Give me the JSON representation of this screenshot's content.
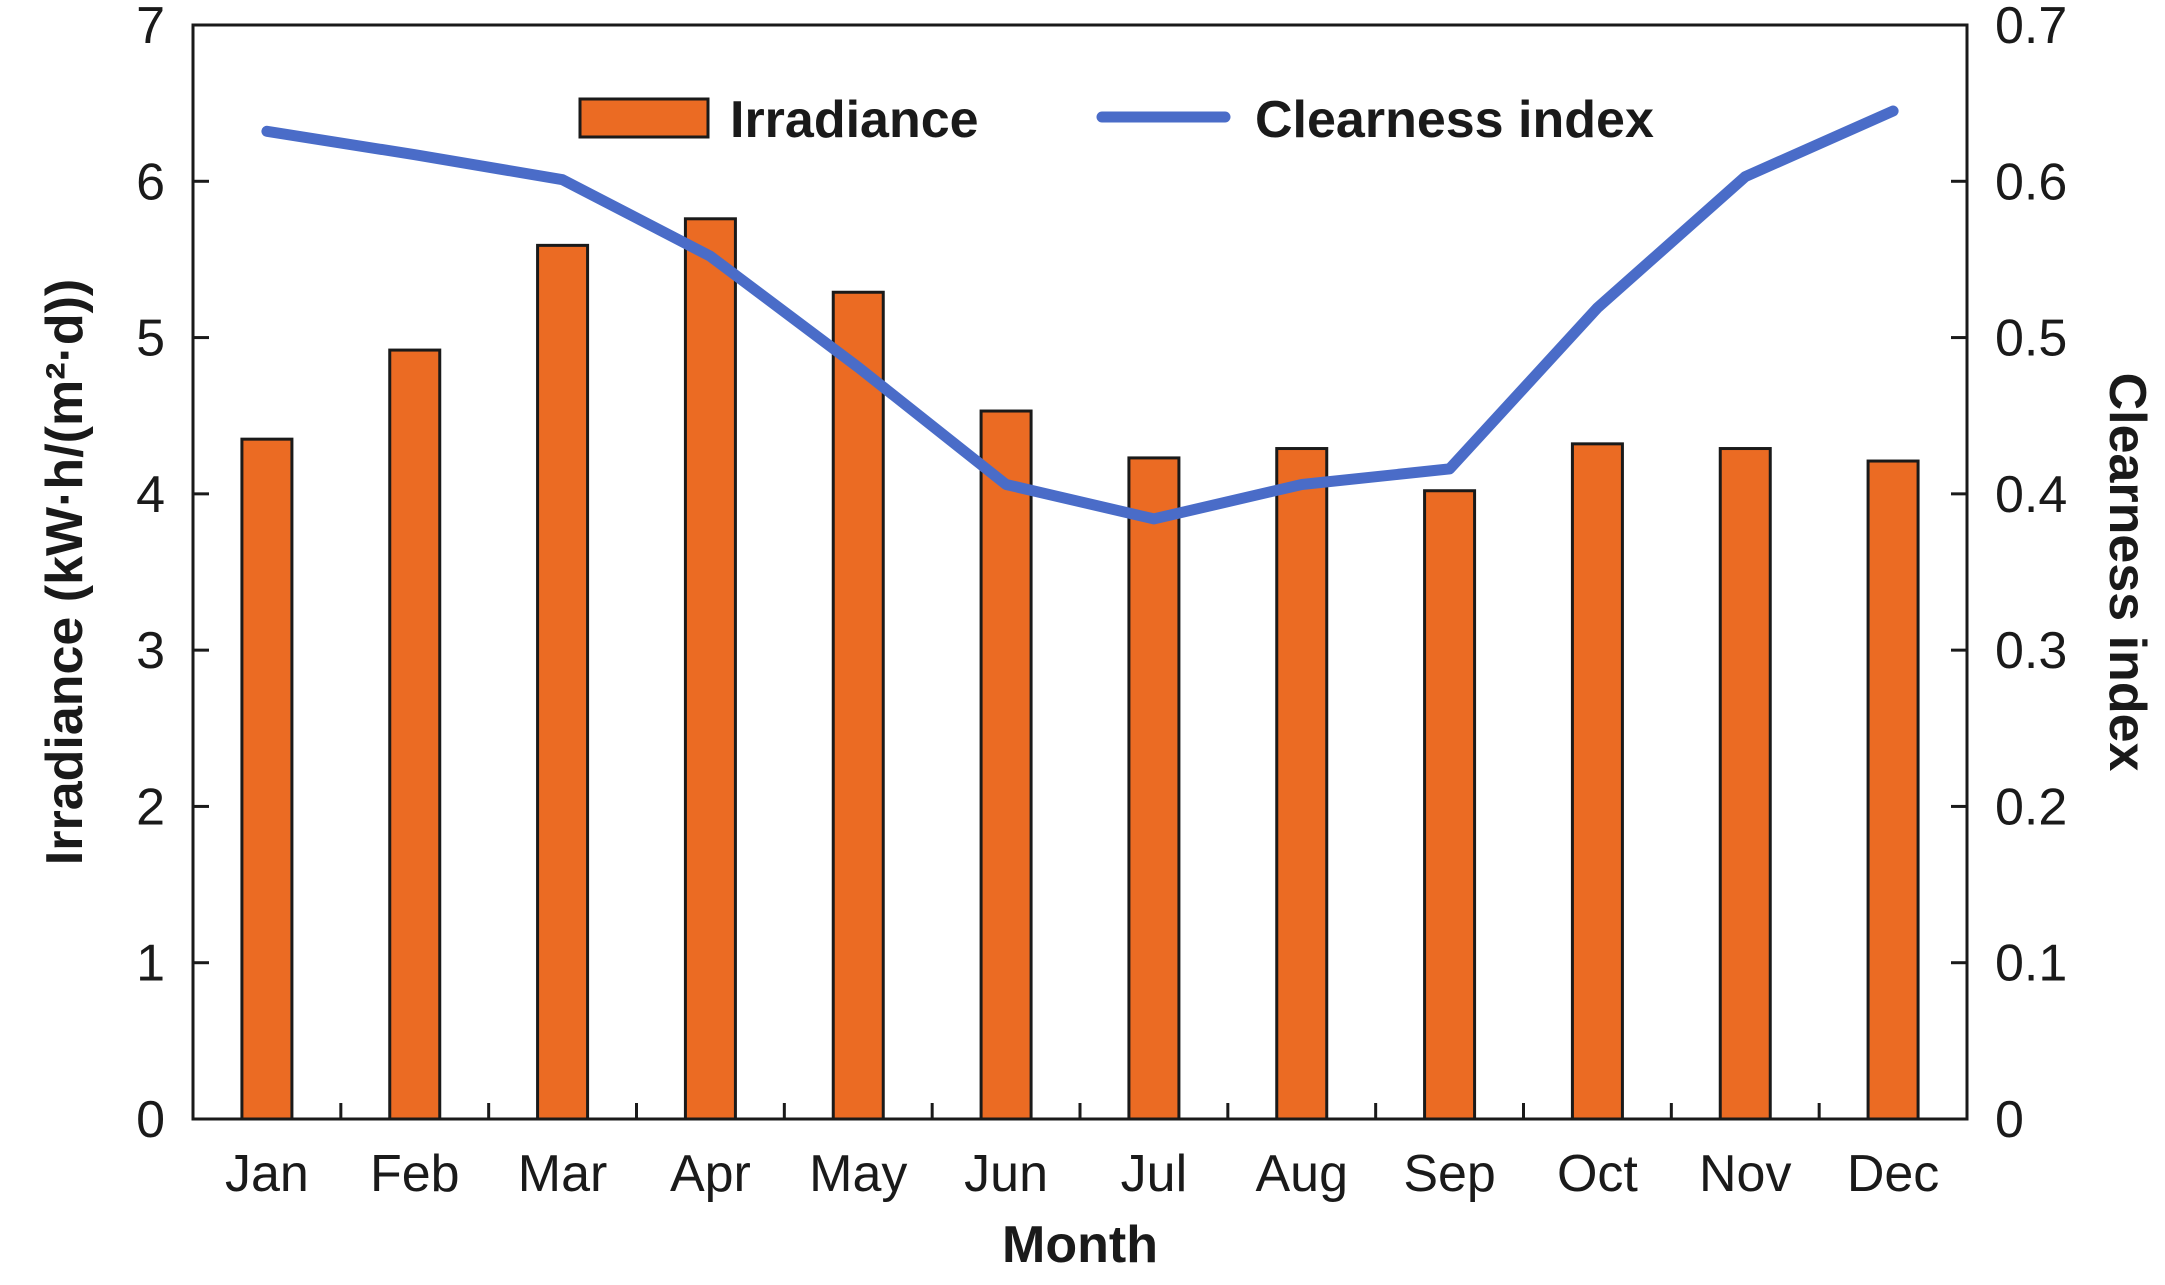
{
  "chart_data": {
    "type": "bar",
    "categories": [
      "Jan",
      "Feb",
      "Mar",
      "Apr",
      "May",
      "Jun",
      "Jul",
      "Aug",
      "Sep",
      "Oct",
      "Nov",
      "Dec"
    ],
    "series": [
      {
        "name": "Irradiance",
        "type": "bar",
        "axis": "left",
        "color": "#EB6B23",
        "values": [
          4.35,
          4.92,
          5.59,
          5.76,
          5.29,
          4.53,
          4.23,
          4.29,
          4.02,
          4.32,
          4.29,
          4.21
        ]
      },
      {
        "name": "Clearness index",
        "type": "line",
        "axis": "right",
        "color": "#4A6CC8",
        "values": [
          0.632,
          0.617,
          0.601,
          0.552,
          0.481,
          0.406,
          0.384,
          0.406,
          0.416,
          0.519,
          0.603,
          0.645
        ]
      }
    ],
    "xlabel": "Month",
    "ylabel": "Irradiance (kW·h/(m²·d))",
    "y2label": "Clearness index",
    "ylim": [
      0,
      7
    ],
    "y2lim": [
      0,
      0.7
    ],
    "yticks": [
      "0",
      "1",
      "2",
      "3",
      "4",
      "5",
      "6",
      "7"
    ],
    "y2ticks": [
      "0",
      "0.1",
      "0.2",
      "0.3",
      "0.4",
      "0.5",
      "0.6",
      "0.7"
    ],
    "grid": false,
    "legend": "top-center"
  }
}
